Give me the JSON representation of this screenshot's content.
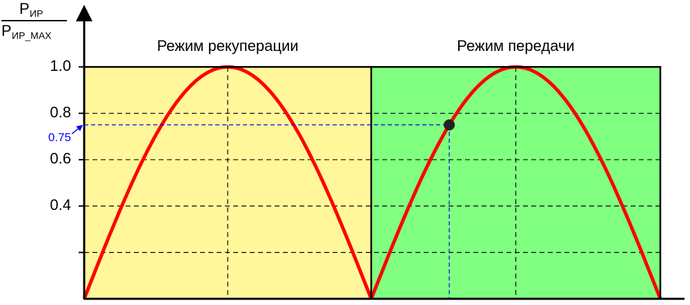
{
  "chart_data": {
    "type": "line",
    "y_label": {
      "numerator": "P",
      "numerator_sub": "ИР",
      "denominator": "P",
      "denominator_sub": "ИР_MAX"
    },
    "regions": [
      {
        "label": "Режим рекуперации",
        "color": "#fff799"
      },
      {
        "label": "Режим передачи",
        "color": "#80ff80"
      }
    ],
    "curve_color": "#ff0000",
    "ylim": [
      0,
      1.25
    ],
    "yticks": [
      {
        "value": 1,
        "label": "1.0"
      },
      0.8,
      0.6,
      0.4,
      {
        "value": 0.2,
        "label": null
      }
    ],
    "grid": true,
    "point": {
      "y": 0.75,
      "label": "0.75",
      "color": "#0000ff"
    }
  }
}
